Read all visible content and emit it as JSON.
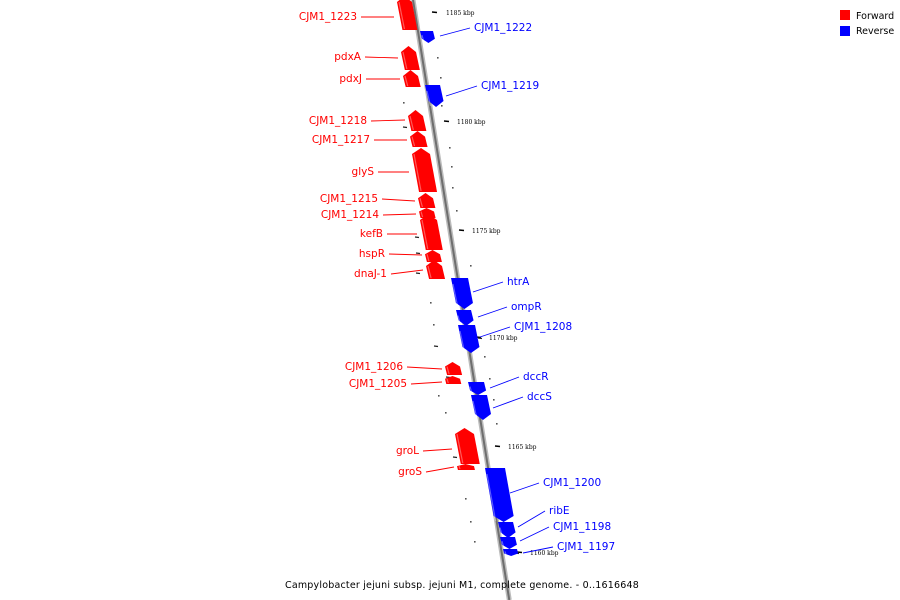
{
  "caption": "Campylobacter jejuni subsp. jejuni M1, complete genome. - 0..1616648",
  "legend": [
    {
      "label": "Forward",
      "color": "#ff0000"
    },
    {
      "label": "Reverse",
      "color": "#0000ff"
    }
  ],
  "colors": {
    "forward": "#ff0000",
    "reverse": "#0000ff",
    "backbone": "#888888"
  },
  "ticks": [
    "1185 kbp",
    "1180 kbp",
    "1175 kbp",
    "1170 kbp",
    "1165 kbp",
    "1160 kbp"
  ],
  "genes": [
    {
      "name": "CJM1_1223",
      "strand": "forward"
    },
    {
      "name": "CJM1_1222",
      "strand": "reverse"
    },
    {
      "name": "pdxA",
      "strand": "forward"
    },
    {
      "name": "pdxJ",
      "strand": "forward"
    },
    {
      "name": "CJM1_1219",
      "strand": "reverse"
    },
    {
      "name": "CJM1_1218",
      "strand": "forward"
    },
    {
      "name": "CJM1_1217",
      "strand": "forward"
    },
    {
      "name": "glyS",
      "strand": "forward"
    },
    {
      "name": "CJM1_1215",
      "strand": "forward"
    },
    {
      "name": "CJM1_1214",
      "strand": "forward"
    },
    {
      "name": "kefB",
      "strand": "forward"
    },
    {
      "name": "hspR",
      "strand": "forward"
    },
    {
      "name": "dnaJ-1",
      "strand": "forward"
    },
    {
      "name": "htrA",
      "strand": "reverse"
    },
    {
      "name": "ompR",
      "strand": "reverse"
    },
    {
      "name": "CJM1_1208",
      "strand": "reverse"
    },
    {
      "name": "CJM1_1206",
      "strand": "forward"
    },
    {
      "name": "CJM1_1205",
      "strand": "forward"
    },
    {
      "name": "dccR",
      "strand": "reverse"
    },
    {
      "name": "dccS",
      "strand": "reverse"
    },
    {
      "name": "groL",
      "strand": "forward"
    },
    {
      "name": "groS",
      "strand": "forward"
    },
    {
      "name": "CJM1_1200",
      "strand": "reverse"
    },
    {
      "name": "ribE",
      "strand": "reverse"
    },
    {
      "name": "CJM1_1198",
      "strand": "reverse"
    },
    {
      "name": "CJM1_1197",
      "strand": "reverse"
    }
  ]
}
